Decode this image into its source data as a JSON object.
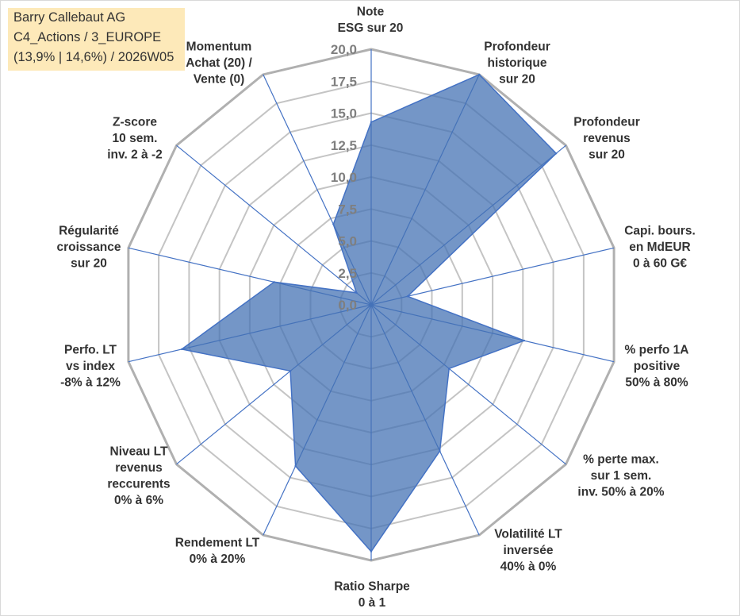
{
  "info_box": {
    "lines": [
      "Barry Callebaut AG",
      "C4_Actions / 3_EUROPE",
      "(13,9% | 14,6%) / 2026W05"
    ]
  },
  "colors": {
    "info_box_bg": "#fde9b9",
    "series_fill": "#4673b4",
    "series_line": "#4472c4",
    "axis_spoke": "#4472c4",
    "grid": "#c4c4c4",
    "grid_outer": "#b0b0b0"
  },
  "chart_data": {
    "type": "radar",
    "categories": [
      [
        "Note",
        "ESG sur 20"
      ],
      [
        "Profondeur",
        "historique",
        "sur 20"
      ],
      [
        "Profondeur",
        "revenus",
        "sur 20"
      ],
      [
        "Capi. bours.",
        "en MdEUR",
        "0 à 60 G€"
      ],
      [
        "% perfo 1A",
        "positive",
        "50% à 80%"
      ],
      [
        "% perte max.",
        "sur 1 sem.",
        "inv. 50% à 20%"
      ],
      [
        "Volatilité LT",
        "inversée",
        "40% à 0%"
      ],
      [
        "Ratio Sharpe",
        "0 à 1"
      ],
      [
        "Rendement LT",
        "0% à 20%"
      ],
      [
        "Niveau LT",
        "revenus",
        "reccurents",
        "0% à 6%"
      ],
      [
        "Perfo. LT",
        "vs index",
        "-8% à 12%"
      ],
      [
        "Régularité",
        "croissance",
        "sur 20"
      ],
      [
        "Z-score",
        "10 sem.",
        "inv. 2 à -2"
      ],
      [
        "Momentum",
        "Achat (20) /",
        "Vente (0)"
      ]
    ],
    "series": [
      {
        "values": [
          14.3,
          20,
          19,
          3,
          12.6,
          8,
          12.7,
          19.3,
          14,
          8.3,
          15.6,
          8,
          1.5,
          7
        ]
      }
    ],
    "r_range": [
      0,
      20
    ],
    "r_ticks": [
      0,
      2.5,
      5,
      7.5,
      10,
      12.5,
      15,
      17.5,
      20
    ],
    "r_tick_labels": [
      "0,0",
      "2,5",
      "5,0",
      "7,5",
      "10,0",
      "12,5",
      "15,0",
      "17,5",
      "20,0"
    ],
    "grid": true,
    "legend": "none"
  }
}
